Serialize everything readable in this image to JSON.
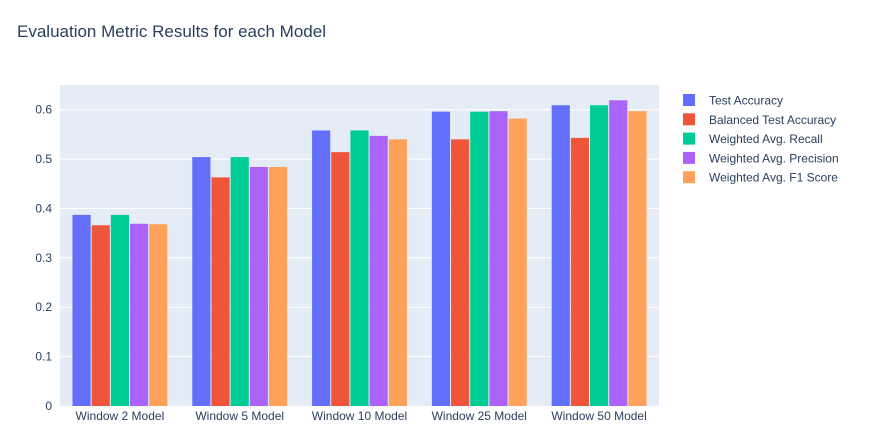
{
  "chart_data": {
    "type": "bar",
    "title": "Evaluation Metric Results for each Model",
    "xlabel": "",
    "ylabel": "",
    "ylim": [
      0,
      0.65
    ],
    "yticks": [
      0,
      0.1,
      0.2,
      0.3,
      0.4,
      0.5,
      0.6
    ],
    "ytick_labels": [
      "0",
      "0.1",
      "0.2",
      "0.3",
      "0.4",
      "0.5",
      "0.6"
    ],
    "grid": true,
    "legend_position": "right",
    "categories": [
      "Window 2 Model",
      "Window 5 Model",
      "Window 10 Model",
      "Window 25 Model",
      "Window 50 Model"
    ],
    "series": [
      {
        "name": "Test Accuracy",
        "color": "#636efa",
        "values": [
          0.387,
          0.504,
          0.558,
          0.596,
          0.609
        ]
      },
      {
        "name": "Balanced Test Accuracy",
        "color": "#ef553b",
        "values": [
          0.366,
          0.463,
          0.514,
          0.54,
          0.543
        ]
      },
      {
        "name": "Weighted Avg. Recall",
        "color": "#00cc96",
        "values": [
          0.387,
          0.504,
          0.558,
          0.596,
          0.609
        ]
      },
      {
        "name": "Weighted Avg. Precision",
        "color": "#ab63fa",
        "values": [
          0.369,
          0.484,
          0.547,
          0.597,
          0.619
        ]
      },
      {
        "name": "Weighted Avg. F1 Score",
        "color": "#ffa15a",
        "values": [
          0.368,
          0.484,
          0.54,
          0.582,
          0.597
        ]
      }
    ]
  },
  "colors": {
    "plot_background": "#e5ecf6",
    "grid": "#ffffff",
    "text": "#2a3f5f"
  }
}
